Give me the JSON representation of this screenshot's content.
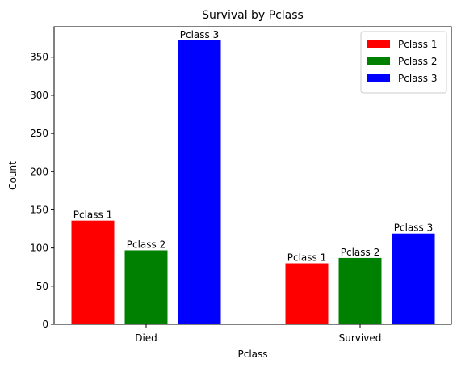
{
  "chart_data": {
    "type": "bar",
    "title": "Survival by Pclass",
    "xlabel": "Pclass",
    "ylabel": "Count",
    "categories": [
      "Died",
      "Survived"
    ],
    "series": [
      {
        "name": "Pclass 1",
        "color": "#ff0000",
        "values": [
          136,
          80
        ],
        "bar_labels": [
          "Pclass 1",
          "Pclass 1"
        ]
      },
      {
        "name": "Pclass 2",
        "color": "#008000",
        "values": [
          97,
          87
        ],
        "bar_labels": [
          "Pclass 2",
          "Pclass 2"
        ]
      },
      {
        "name": "Pclass 3",
        "color": "#0000ff",
        "values": [
          372,
          119
        ],
        "bar_labels": [
          "Pclass 3",
          "Pclass 3"
        ]
      }
    ],
    "yticks": [
      0,
      50,
      100,
      150,
      200,
      250,
      300,
      350
    ],
    "ylim": [
      0,
      390
    ],
    "grid": false,
    "legend_position": "top-right"
  }
}
